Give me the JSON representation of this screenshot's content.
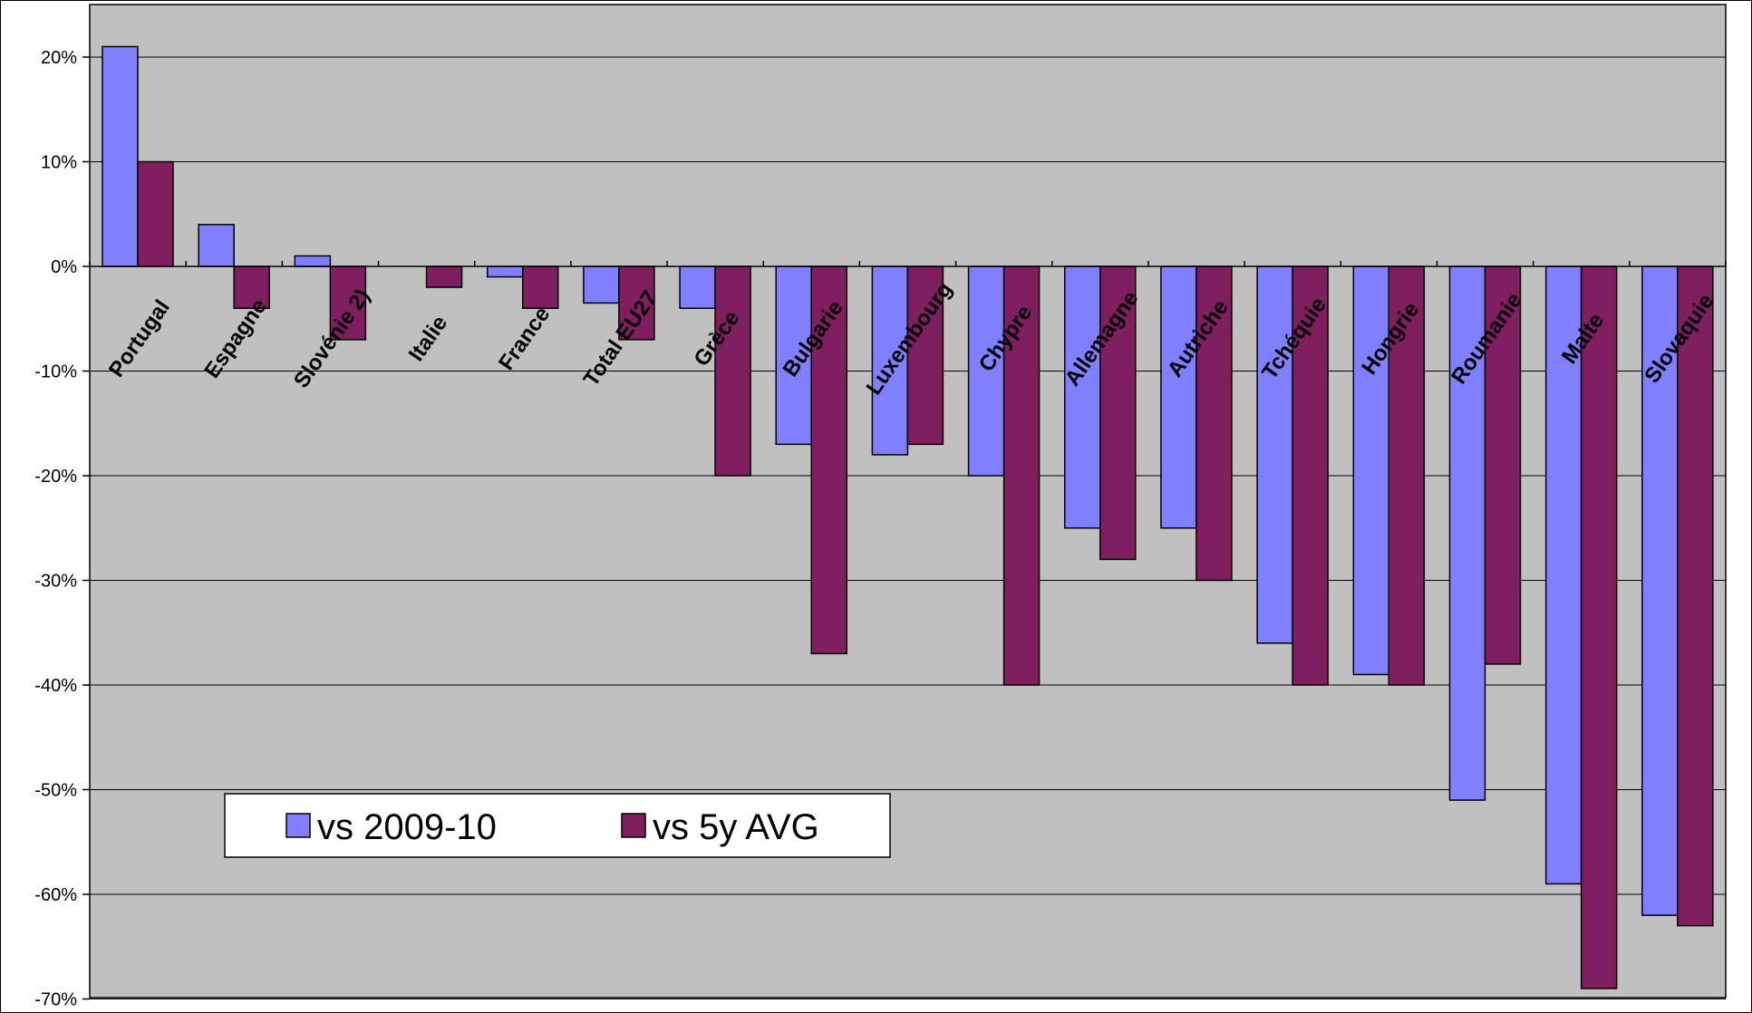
{
  "chart_data": {
    "type": "bar",
    "title": "",
    "xlabel": "",
    "ylabel": "",
    "categories": [
      "Portugal",
      "Espagne",
      "Slovénie 2)",
      "Italie",
      "France",
      "Total EU27",
      "Grèce",
      "Bulgarie",
      "Luxembourg",
      "Chypre",
      "Allemagne",
      "Autriche",
      "Tchéquie",
      "Hongrie",
      "Roumanie",
      "Malte",
      "Slovaquie"
    ],
    "series": [
      {
        "name": "vs 2009-10",
        "color": "#8080ff",
        "values": [
          21,
          4,
          1,
          0,
          -1,
          -3.5,
          -4,
          -17,
          -18,
          -20,
          -25,
          -25,
          -36,
          -39,
          -51,
          -59,
          -62
        ]
      },
      {
        "name": "vs 5y AVG",
        "color": "#7f1f5f",
        "values": [
          10,
          -4,
          -7,
          -2,
          -4,
          -7,
          -20,
          -37,
          -17,
          -40,
          -28,
          -30,
          -40,
          -40,
          -38,
          -69,
          -63
        ]
      }
    ],
    "ylim": [
      -70,
      25
    ],
    "yticks": [
      20,
      10,
      0,
      -10,
      -20,
      -30,
      -40,
      -50,
      -60,
      -70
    ],
    "ytick_labels": [
      "20%",
      "10%",
      "0%",
      "-10%",
      "-20%",
      "-30%",
      "-40%",
      "-50%",
      "-60%",
      "-70%"
    ],
    "grid": true,
    "legend_position": "bottom-left",
    "plot_background": "#c0c0c0"
  }
}
